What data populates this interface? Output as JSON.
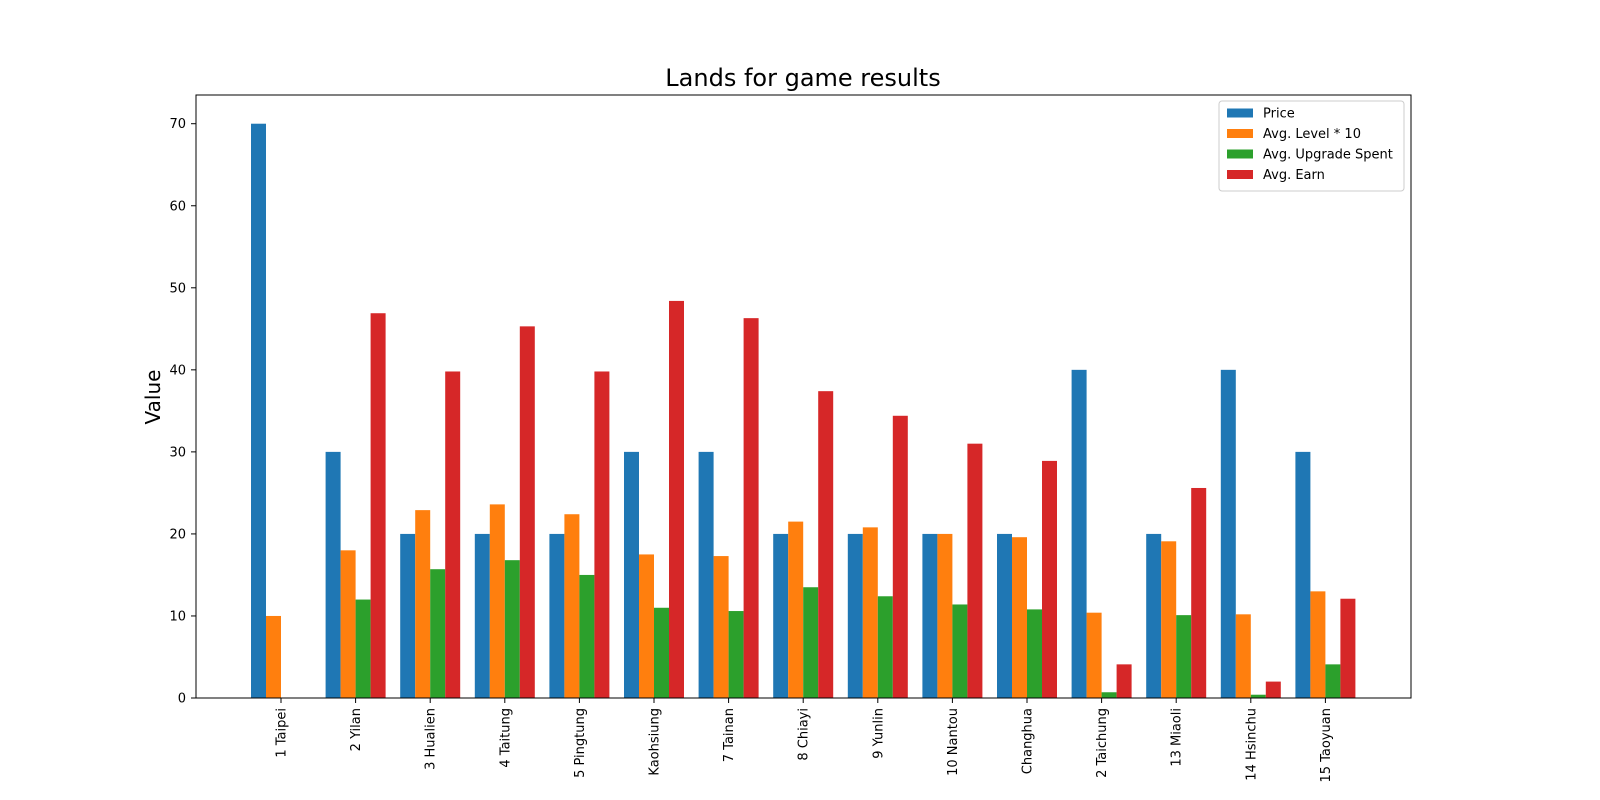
{
  "chart_data": {
    "type": "bar",
    "title": "Lands for game results",
    "xlabel": "",
    "ylabel": "Value",
    "ylim": [
      0,
      73.5
    ],
    "yticks": [
      0,
      10,
      20,
      30,
      40,
      50,
      60,
      70
    ],
    "legend_position": "top-right",
    "grid": false,
    "categories": [
      "1 Taipei",
      "2 Yilan",
      "3 Hualien",
      "4 Taitung",
      "5 Pingtung",
      "Kaohsiung",
      "7 Tainan",
      "8 Chiayi",
      "9 Yunlin",
      "10 Nantou",
      "Changhua",
      "2 Taichung",
      "13 Miaoli",
      "14 Hsinchu",
      "15 Taoyuan"
    ],
    "series": [
      {
        "name": "Price",
        "color": "#1f77b4",
        "values": [
          70,
          30,
          20,
          20,
          20,
          30,
          30,
          20,
          20,
          20,
          20,
          40,
          20,
          40,
          30
        ]
      },
      {
        "name": "Avg. Level * 10",
        "color": "#ff7f0e",
        "values": [
          10,
          18,
          22.9,
          23.6,
          22.4,
          17.5,
          17.3,
          21.5,
          20.8,
          20,
          19.6,
          10.4,
          19.1,
          10.2,
          13
        ]
      },
      {
        "name": "Avg. Upgrade Spent",
        "color": "#2ca02c",
        "values": [
          0,
          12,
          15.7,
          16.8,
          15,
          11,
          10.6,
          13.5,
          12.4,
          11.4,
          10.8,
          0.7,
          10.1,
          0.4,
          4.1
        ]
      },
      {
        "name": "Avg. Earn",
        "color": "#d62728",
        "values": [
          0,
          46.9,
          39.8,
          45.3,
          39.8,
          48.4,
          46.3,
          37.4,
          34.4,
          31,
          28.9,
          4.1,
          25.6,
          2,
          12.1
        ]
      }
    ]
  }
}
